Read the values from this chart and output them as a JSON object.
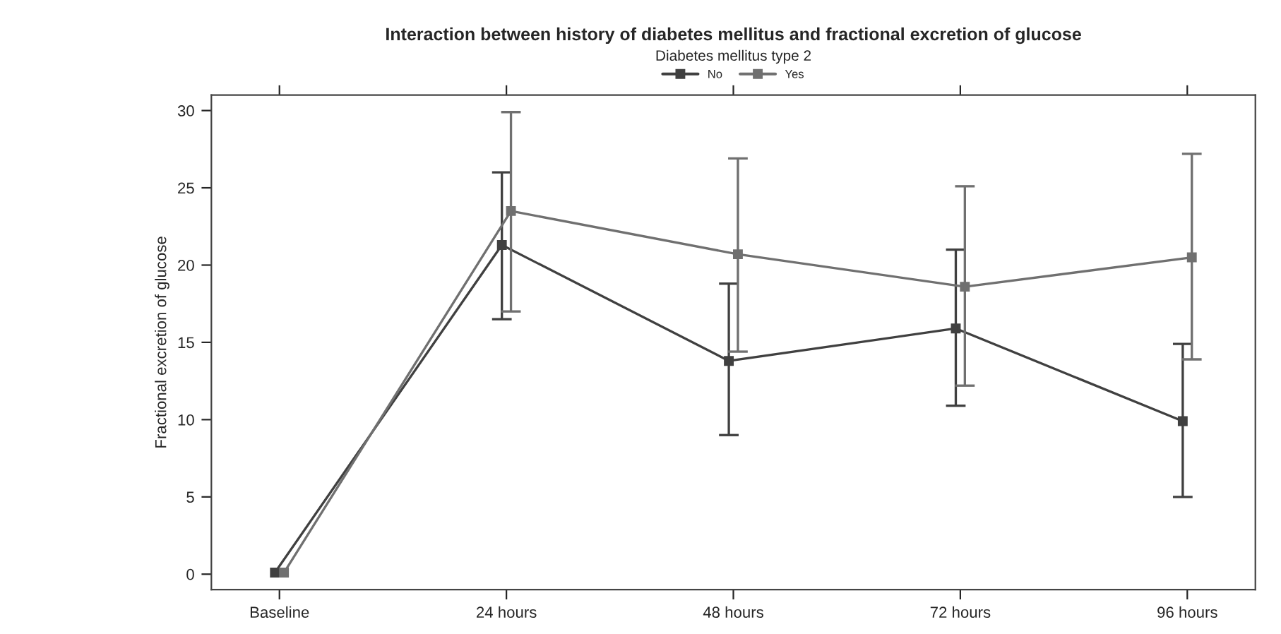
{
  "chart_data": {
    "type": "line",
    "title": "Interaction between history of diabetes mellitus and fractional excretion of glucose",
    "ylabel": "Fractional excretion of glucose",
    "legend_title": "Diabetes mellitus type 2",
    "categories": [
      "Baseline",
      "24 hours",
      "48 hours",
      "72 hours",
      "96 hours"
    ],
    "series": [
      {
        "name": "No",
        "color": "#404040",
        "values": [
          0.1,
          21.3,
          13.8,
          15.9,
          9.9
        ],
        "errors": [
          null,
          [
            16.5,
            26.0
          ],
          [
            9.0,
            18.8
          ],
          [
            10.9,
            21.0
          ],
          [
            5.0,
            14.9
          ]
        ]
      },
      {
        "name": "Yes",
        "color": "#707070",
        "values": [
          0.1,
          23.5,
          20.7,
          18.6,
          20.5
        ],
        "errors": [
          null,
          [
            17.0,
            29.9
          ],
          [
            14.4,
            26.9
          ],
          [
            12.2,
            25.1
          ],
          [
            13.9,
            27.2
          ]
        ]
      }
    ],
    "ylim": [
      -1,
      31
    ],
    "yticks": [
      0,
      5,
      10,
      15,
      20,
      25,
      30
    ],
    "grid": false,
    "legend": "top",
    "marker": "square",
    "line_style": "solid"
  }
}
